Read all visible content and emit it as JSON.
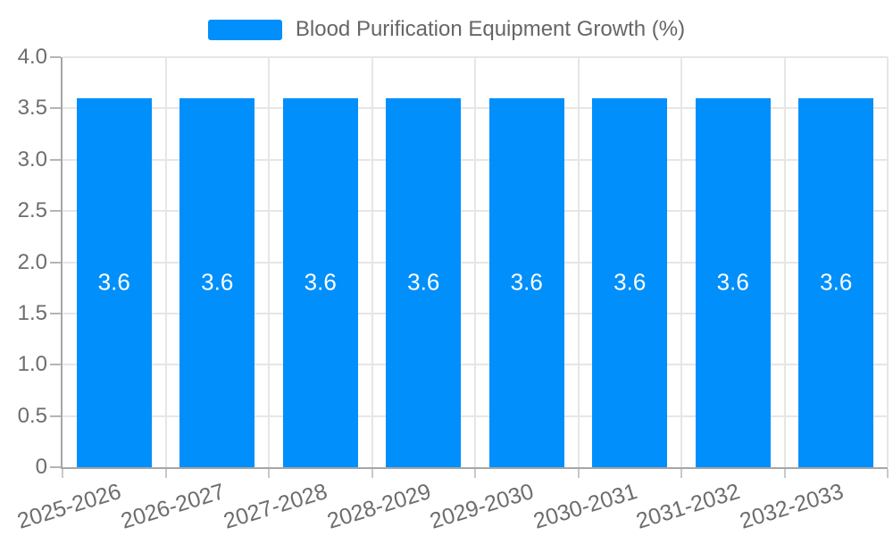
{
  "legend": {
    "series_label": "Blood Purification Equipment Growth (%)"
  },
  "chart_data": {
    "type": "bar",
    "title": "",
    "categories": [
      "2025-2026",
      "2026-2027",
      "2027-2028",
      "2028-2029",
      "2029-2030",
      "2030-2031",
      "2031-2032",
      "2032-2033"
    ],
    "series": [
      {
        "name": "Blood Purification Equipment Growth (%)",
        "values": [
          3.6,
          3.6,
          3.6,
          3.6,
          3.6,
          3.6,
          3.6,
          3.6
        ]
      }
    ],
    "data_labels": [
      "3.6",
      "3.6",
      "3.6",
      "3.6",
      "3.6",
      "3.6",
      "3.6",
      "3.6"
    ],
    "xlabel": "",
    "ylabel": "",
    "ylim": [
      0,
      4.0
    ],
    "yticks": {
      "values": [
        4.0,
        3.5,
        3.0,
        2.5,
        2.0,
        1.5,
        1.0,
        0.5,
        0
      ],
      "labels": [
        "4.0",
        "3.5",
        "3.0",
        "2.5",
        "2.0",
        "1.5",
        "1.0",
        "0.5",
        "0"
      ]
    },
    "grid": true,
    "legend_position": "top",
    "colors": {
      "bar": "#008FFB",
      "value_label": "#ffffff",
      "axis_label": "#6d6d6d",
      "legend_text": "#666666",
      "grid_line": "#e6e6e6",
      "axis_line": "#a6a6a6"
    }
  }
}
